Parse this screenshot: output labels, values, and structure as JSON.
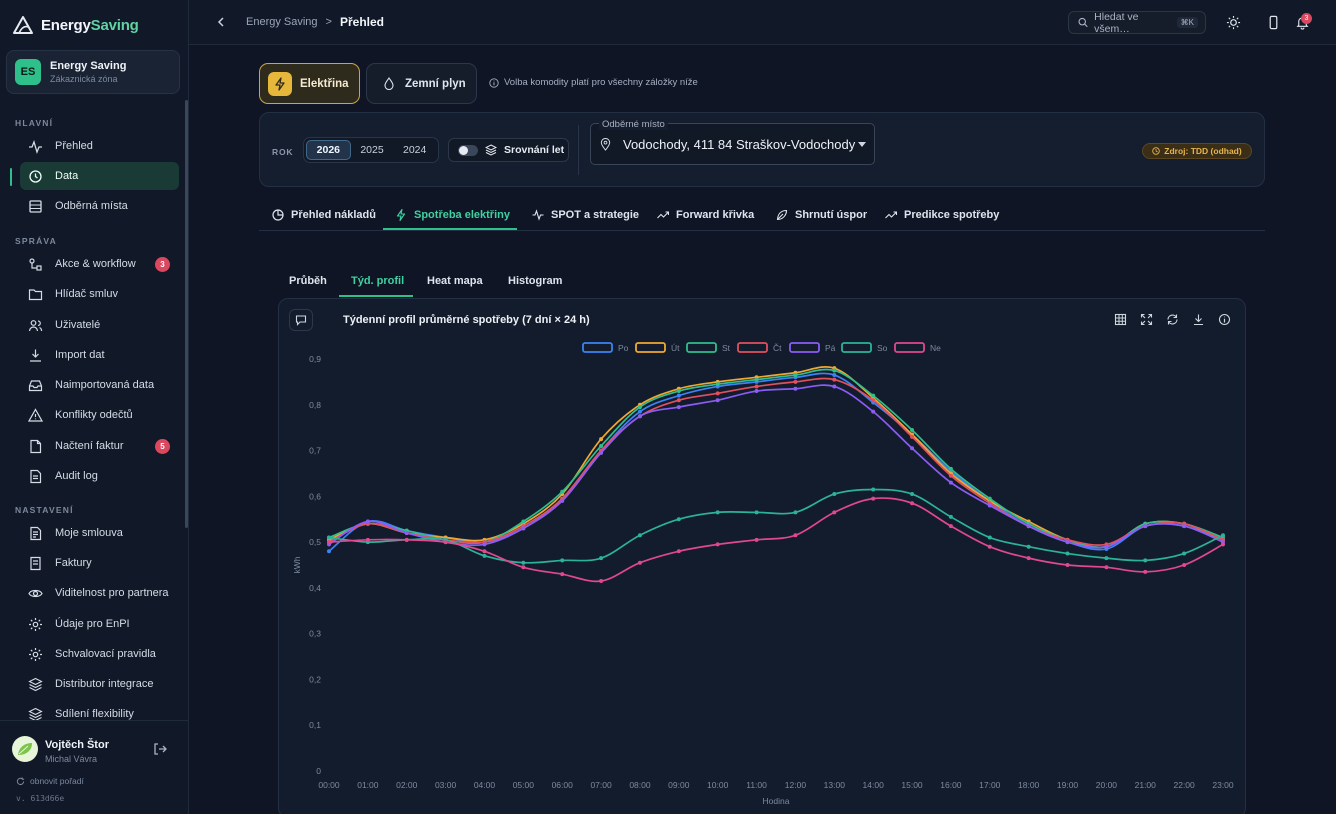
{
  "brand": {
    "name_main": "Energy",
    "name_accent": "Saving"
  },
  "org": {
    "initials": "ES",
    "title": "Energy Saving",
    "subtitle": "Zákaznická zóna"
  },
  "sidebar": {
    "sections": {
      "main": "HLAVNÍ",
      "manage": "SPRÁVA",
      "settings": "NASTAVENÍ"
    },
    "items": [
      {
        "label": "Přehled",
        "icon": "activity-icon"
      },
      {
        "label": "Data",
        "icon": "chart-pie-icon",
        "active": true
      },
      {
        "label": "Odběrná místa",
        "icon": "building-icon"
      },
      {
        "label": "Akce & workflow",
        "icon": "workflow-icon",
        "badge": "3"
      },
      {
        "label": "Hlídač smluv",
        "icon": "folder-icon"
      },
      {
        "label": "Uživatelé",
        "icon": "users-icon"
      },
      {
        "label": "Import dat",
        "icon": "import-icon"
      },
      {
        "label": "Naimportovaná data",
        "icon": "inbox-icon"
      },
      {
        "label": "Konflikty odečtů",
        "icon": "warning-icon"
      },
      {
        "label": "Načtení faktur",
        "icon": "file-icon",
        "badge": "5"
      },
      {
        "label": "Audit log",
        "icon": "audit-icon"
      },
      {
        "label": "Moje smlouva",
        "icon": "document-icon"
      },
      {
        "label": "Faktury",
        "icon": "invoice-icon"
      },
      {
        "label": "Viditelnost pro partnera",
        "icon": "eye-icon"
      },
      {
        "label": "Údaje pro EnPI",
        "icon": "gear-icon"
      },
      {
        "label": "Schvalovací pravidla",
        "icon": "gear-icon"
      },
      {
        "label": "Distributor integrace",
        "icon": "layers-icon"
      },
      {
        "label": "Sdílení flexibility",
        "icon": "layers-icon"
      }
    ]
  },
  "user": {
    "name": "Vojtěch Štor",
    "subtitle": "Michal Vávra",
    "refresh_label": "obnovit pořadí",
    "version": "v. 613d66e"
  },
  "header": {
    "breadcrumb_parent": "Energy Saving",
    "breadcrumb_separator": ">",
    "breadcrumb_current": "Přehled",
    "search_placeholder": "Hledat ve všem…",
    "search_shortcut": "⌘K",
    "notification_count": "3"
  },
  "commodity": {
    "electricity": "Elektřina",
    "gas": "Zemní plyn",
    "note": "Volba komodity platí pro všechny záložky níže"
  },
  "filters": {
    "year_label": "ROK",
    "years": [
      "2026",
      "2025",
      "2024"
    ],
    "selected_year": "2026",
    "compare_label": "Srovnání let",
    "site_label": "Odběrné místo",
    "site_value": "Vodochody, 411 84 Straškov-Vodochody",
    "source_label": "Zdroj: TDD (odhad)"
  },
  "tabs": [
    "Přehled nákladů",
    "Spotřeba elektřiny",
    "SPOT a strategie",
    "Forward křivka",
    "Shrnutí úspor",
    "Predikce spotřeby"
  ],
  "active_tab": "Spotřeba elektřiny",
  "subtabs": [
    "Průběh",
    "Týd. profil",
    "Heat mapa",
    "Histogram"
  ],
  "active_subtab": "Týd. profil",
  "chart_title": "Týdenní profil průměrné spotřeby (7 dní × 24 h)",
  "chart_data": {
    "type": "line",
    "title": "Týdenní profil průměrné spotřeby (7 dní × 24 h)",
    "xlabel": "Hodina",
    "ylabel": "kWh",
    "ylim": [
      0,
      0.9
    ],
    "yticks": [
      "0",
      "0,1",
      "0,2",
      "0,3",
      "0,4",
      "0,5",
      "0,6",
      "0,7",
      "0,8",
      "0,9"
    ],
    "grid": false,
    "legend_position": "top",
    "x": [
      "00:00",
      "01:00",
      "02:00",
      "03:00",
      "04:00",
      "05:00",
      "06:00",
      "07:00",
      "08:00",
      "09:00",
      "10:00",
      "11:00",
      "12:00",
      "13:00",
      "14:00",
      "15:00",
      "16:00",
      "17:00",
      "18:00",
      "19:00",
      "20:00",
      "21:00",
      "22:00",
      "23:00"
    ],
    "series": [
      {
        "name": "Po",
        "color": "#3b82f6",
        "values": [
          0.48,
          0.545,
          0.525,
          0.51,
          0.5,
          0.53,
          0.595,
          0.7,
          0.785,
          0.82,
          0.84,
          0.85,
          0.86,
          0.865,
          0.805,
          0.735,
          0.655,
          0.59,
          0.535,
          0.5,
          0.485,
          0.535,
          0.535,
          0.505
        ]
      },
      {
        "name": "Út",
        "color": "#f0a830",
        "values": [
          0.505,
          0.54,
          0.52,
          0.51,
          0.505,
          0.54,
          0.605,
          0.725,
          0.8,
          0.835,
          0.85,
          0.86,
          0.87,
          0.88,
          0.815,
          0.735,
          0.65,
          0.59,
          0.545,
          0.505,
          0.49,
          0.54,
          0.54,
          0.505
        ]
      },
      {
        "name": "St",
        "color": "#2fbf8b",
        "values": [
          0.51,
          0.54,
          0.525,
          0.505,
          0.5,
          0.545,
          0.61,
          0.71,
          0.795,
          0.83,
          0.845,
          0.855,
          0.865,
          0.875,
          0.82,
          0.745,
          0.66,
          0.595,
          0.54,
          0.505,
          0.49,
          0.54,
          0.54,
          0.51
        ]
      },
      {
        "name": "Čt",
        "color": "#e0505f",
        "values": [
          0.5,
          0.54,
          0.52,
          0.505,
          0.5,
          0.535,
          0.595,
          0.7,
          0.775,
          0.81,
          0.825,
          0.84,
          0.85,
          0.855,
          0.81,
          0.73,
          0.645,
          0.585,
          0.535,
          0.505,
          0.495,
          0.535,
          0.54,
          0.505
        ]
      },
      {
        "name": "Pá",
        "color": "#8b5cf6",
        "values": [
          0.495,
          0.545,
          0.52,
          0.5,
          0.495,
          0.53,
          0.59,
          0.695,
          0.775,
          0.795,
          0.81,
          0.83,
          0.835,
          0.84,
          0.785,
          0.705,
          0.63,
          0.58,
          0.535,
          0.5,
          0.49,
          0.535,
          0.535,
          0.5
        ]
      },
      {
        "name": "So",
        "color": "#2bb39a",
        "values": [
          0.51,
          0.5,
          0.505,
          0.505,
          0.47,
          0.455,
          0.46,
          0.465,
          0.515,
          0.55,
          0.565,
          0.565,
          0.565,
          0.605,
          0.615,
          0.605,
          0.555,
          0.51,
          0.49,
          0.475,
          0.465,
          0.46,
          0.475,
          0.515
        ]
      },
      {
        "name": "Ne",
        "color": "#e0488f",
        "values": [
          0.5,
          0.505,
          0.505,
          0.5,
          0.48,
          0.445,
          0.43,
          0.415,
          0.455,
          0.48,
          0.495,
          0.505,
          0.515,
          0.565,
          0.595,
          0.585,
          0.535,
          0.49,
          0.465,
          0.45,
          0.445,
          0.435,
          0.45,
          0.495
        ]
      }
    ]
  }
}
